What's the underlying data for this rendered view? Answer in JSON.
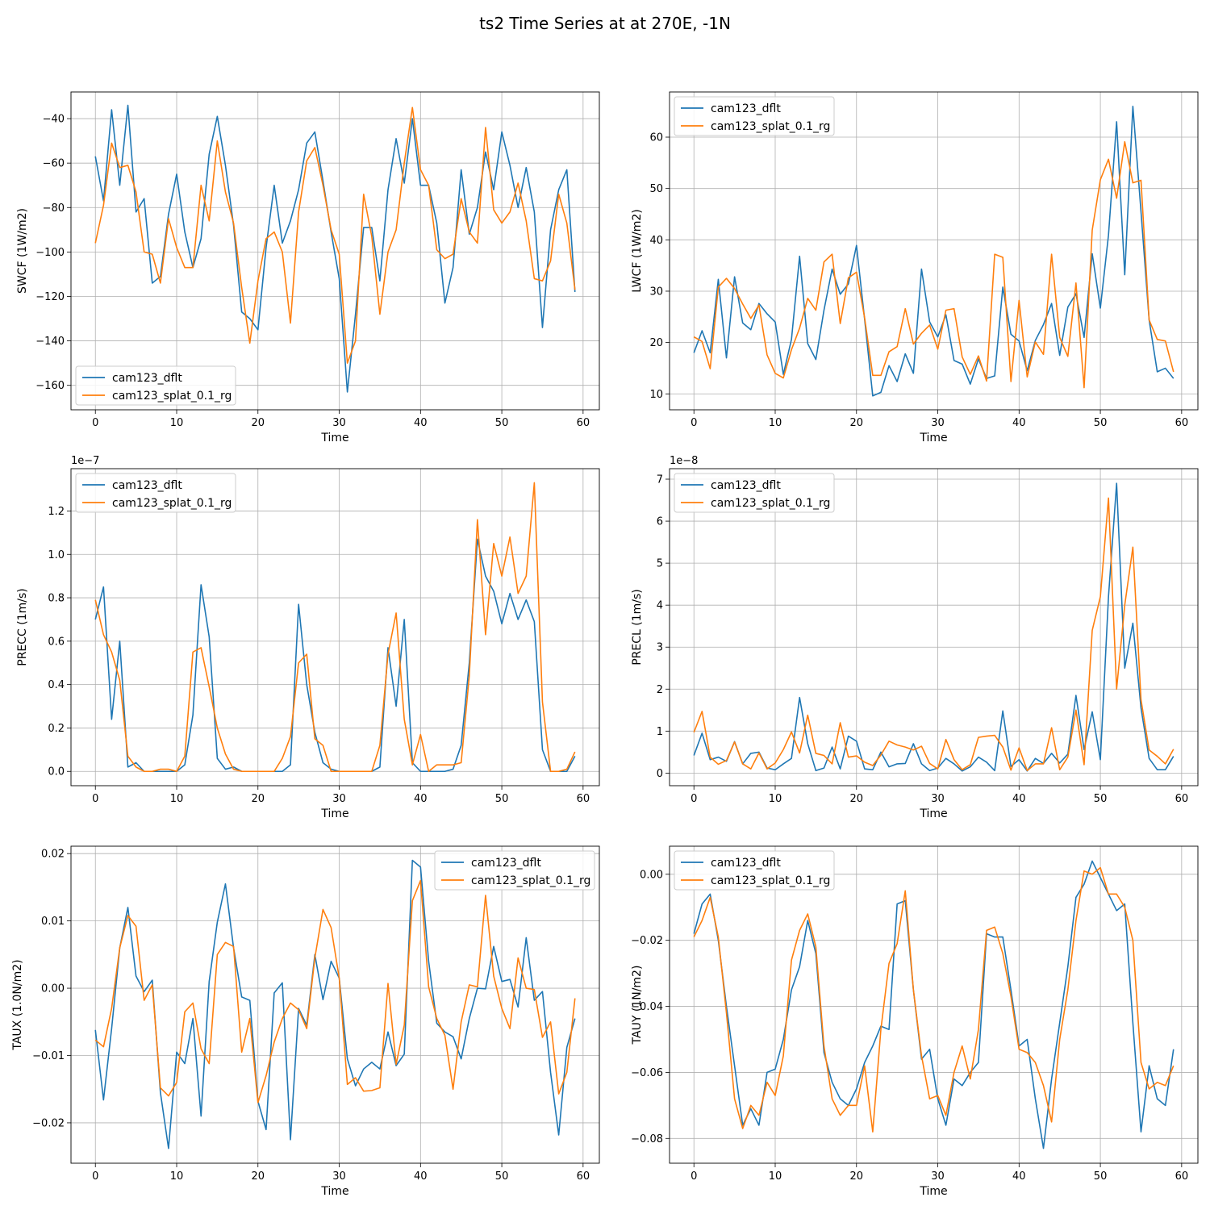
{
  "figure": {
    "title": "ts2 Time Series at at 270E, -1N"
  },
  "colors": {
    "series": [
      "#1f77b4",
      "#ff7f0e"
    ],
    "grid": "#b0b0b0",
    "frame": "#000000"
  },
  "chart_data": [
    {
      "type": "line",
      "xlabel": "Time",
      "ylabel": "SWCF (1W/m2)",
      "xlim": [
        -3,
        62
      ],
      "ylim": [
        -171,
        -28
      ],
      "xticks": [
        0,
        10,
        20,
        30,
        40,
        50,
        60
      ],
      "yticks": [
        -160,
        -140,
        -120,
        -100,
        -80,
        -60,
        -40
      ],
      "ytick_labels": [
        "−160",
        "−140",
        "−120",
        "−100",
        "−80",
        "−60",
        "−40"
      ],
      "grid": true,
      "offset_text": "",
      "legend": "lower-left",
      "series": [
        {
          "name": "cam123_dflt",
          "values": [
            -57,
            -77,
            -36,
            -70,
            -34,
            -82,
            -76,
            -114,
            -111,
            -83,
            -65,
            -91,
            -107,
            -94,
            -56,
            -39,
            -61,
            -88,
            -127,
            -130,
            -135,
            -98,
            -70,
            -96,
            -86,
            -72,
            -51,
            -46,
            -68,
            -91,
            -112,
            -163,
            -128,
            -89,
            -89,
            -113,
            -72,
            -49,
            -69,
            -40,
            -70,
            -70,
            -87,
            -123,
            -107,
            -63,
            -92,
            -80,
            -55,
            -72,
            -46,
            -61,
            -80,
            -62,
            -82,
            -134,
            -90,
            -72,
            -63,
            -118
          ]
        },
        {
          "name": "cam123_splat_0.1_rg",
          "values": [
            -96,
            -79,
            -51,
            -62,
            -61,
            -73,
            -100,
            -101,
            -114,
            -85,
            -98,
            -107,
            -107,
            -70,
            -86,
            -50,
            -73,
            -87,
            -116,
            -141,
            -113,
            -94,
            -91,
            -100,
            -132,
            -82,
            -59,
            -53,
            -70,
            -90,
            -101,
            -150,
            -140,
            -74,
            -93,
            -128,
            -100,
            -90,
            -60,
            -35,
            -63,
            -70,
            -99,
            -103,
            -101,
            -76,
            -91,
            -96,
            -44,
            -81,
            -87,
            -82,
            -69,
            -86,
            -112,
            -113,
            -104,
            -74,
            -87,
            -117
          ]
        }
      ]
    },
    {
      "type": "line",
      "xlabel": "Time",
      "ylabel": "LWCF (1W/m2)",
      "xlim": [
        -3,
        62
      ],
      "ylim": [
        6.9,
        68.8
      ],
      "xticks": [
        0,
        10,
        20,
        30,
        40,
        50,
        60
      ],
      "yticks": [
        10,
        20,
        30,
        40,
        50,
        60
      ],
      "ytick_labels": [
        "10",
        "20",
        "30",
        "40",
        "50",
        "60"
      ],
      "grid": true,
      "offset_text": "",
      "legend": "upper-left",
      "series": [
        {
          "name": "cam123_dflt",
          "values": [
            18,
            22.3,
            18,
            32.3,
            17,
            32.8,
            23.8,
            22.5,
            27.6,
            25.6,
            24,
            13.8,
            20.6,
            36.8,
            19.8,
            16.7,
            26.3,
            34.3,
            29.4,
            31.4,
            38.9,
            24.5,
            9.6,
            10.3,
            15.5,
            12.4,
            17.8,
            14,
            34.3,
            24,
            21.1,
            25.4,
            16.5,
            15.8,
            11.9,
            16.8,
            13,
            13.5,
            30.8,
            21.6,
            20.3,
            14.5,
            20.4,
            23.5,
            27.6,
            17.5,
            26.9,
            29.5,
            21,
            37.3,
            26.7,
            40.9,
            63,
            33.2,
            66,
            45.5,
            24.4,
            14.3,
            15,
            13
          ]
        },
        {
          "name": "cam123_splat_0.1_rg",
          "values": [
            21.1,
            20.2,
            14.9,
            30.8,
            32.5,
            30.5,
            27.5,
            24.7,
            27.3,
            17.6,
            14,
            13.1,
            18.6,
            22.8,
            28.6,
            26.3,
            35.7,
            37.2,
            23.7,
            32.6,
            33.7,
            24.8,
            13.6,
            13.6,
            18.2,
            19.2,
            26.6,
            19.7,
            21.8,
            23.4,
            18.7,
            26.3,
            26.6,
            17.2,
            13.8,
            17.4,
            12.5,
            37.2,
            36.6,
            12.4,
            28.2,
            13.3,
            20.1,
            17.7,
            37.2,
            21,
            17.3,
            31.6,
            11.2,
            41.9,
            51.7,
            55.7,
            48.1,
            59.1,
            51.1,
            51.6,
            24.4,
            20.6,
            20.3,
            14.3
          ]
        }
      ]
    },
    {
      "type": "line",
      "xlabel": "Time",
      "ylabel": "PRECC (1m/s)",
      "xlim": [
        -3,
        62
      ],
      "ylim": [
        -0.066,
        1.395
      ],
      "xticks": [
        0,
        10,
        20,
        30,
        40,
        50,
        60
      ],
      "yticks": [
        0.0,
        0.2,
        0.4,
        0.6,
        0.8,
        1.0,
        1.2
      ],
      "ytick_labels": [
        "0.0",
        "0.2",
        "0.4",
        "0.6",
        "0.8",
        "1.0",
        "1.2"
      ],
      "grid": true,
      "offset_text": "1e−7",
      "legend": "upper-left",
      "series": [
        {
          "name": "cam123_dflt",
          "values": [
            0.7,
            0.85,
            0.24,
            0.6,
            0.02,
            0.04,
            0.0,
            0.0,
            0.0,
            0.0,
            0.0,
            0.03,
            0.26,
            0.86,
            0.62,
            0.06,
            0.01,
            0.02,
            0.0,
            0.0,
            0.0,
            0.0,
            0.0,
            0.0,
            0.03,
            0.77,
            0.4,
            0.18,
            0.04,
            0.01,
            0.0,
            0.0,
            0.0,
            0.0,
            0.0,
            0.02,
            0.57,
            0.3,
            0.7,
            0.04,
            0.0,
            0.0,
            0.0,
            0.0,
            0.01,
            0.12,
            0.5,
            1.07,
            0.9,
            0.83,
            0.68,
            0.82,
            0.7,
            0.79,
            0.69,
            0.1,
            0.0,
            0.0,
            0.0,
            0.07
          ]
        },
        {
          "name": "cam123_splat_0.1_rg",
          "values": [
            0.79,
            0.63,
            0.55,
            0.42,
            0.07,
            0.02,
            0.0,
            0.0,
            0.01,
            0.01,
            0.0,
            0.07,
            0.55,
            0.57,
            0.39,
            0.2,
            0.08,
            0.01,
            0.0,
            0.0,
            0.0,
            0.0,
            0.0,
            0.06,
            0.16,
            0.5,
            0.54,
            0.15,
            0.12,
            0.0,
            0.0,
            0.0,
            0.0,
            0.0,
            0.0,
            0.12,
            0.54,
            0.73,
            0.24,
            0.03,
            0.17,
            0.0,
            0.03,
            0.03,
            0.03,
            0.04,
            0.44,
            1.16,
            0.63,
            1.05,
            0.9,
            1.08,
            0.82,
            0.9,
            1.33,
            0.32,
            0.0,
            0.0,
            0.01,
            0.09
          ]
        }
      ]
    },
    {
      "type": "line",
      "xlabel": "Time",
      "ylabel": "PRECL (1m/s)",
      "xlim": [
        -3,
        62
      ],
      "ylim": [
        -0.3,
        7.25
      ],
      "xticks": [
        0,
        10,
        20,
        30,
        40,
        50,
        60
      ],
      "yticks": [
        0,
        1,
        2,
        3,
        4,
        5,
        6,
        7
      ],
      "ytick_labels": [
        "0",
        "1",
        "2",
        "3",
        "4",
        "5",
        "6",
        "7"
      ],
      "grid": true,
      "offset_text": "1e−8",
      "legend": "upper-left",
      "series": [
        {
          "name": "cam123_dflt",
          "values": [
            0.42,
            0.95,
            0.32,
            0.38,
            0.28,
            0.75,
            0.22,
            0.47,
            0.5,
            0.12,
            0.08,
            0.22,
            0.35,
            1.8,
            0.7,
            0.06,
            0.12,
            0.62,
            0.1,
            0.88,
            0.76,
            0.1,
            0.08,
            0.5,
            0.15,
            0.22,
            0.23,
            0.7,
            0.22,
            0.06,
            0.12,
            0.35,
            0.22,
            0.05,
            0.15,
            0.38,
            0.26,
            0.06,
            1.48,
            0.16,
            0.32,
            0.05,
            0.35,
            0.23,
            0.47,
            0.24,
            0.45,
            1.85,
            0.56,
            1.46,
            0.32,
            4.2,
            6.9,
            2.5,
            3.57,
            1.55,
            0.35,
            0.08,
            0.08,
            0.4
          ]
        },
        {
          "name": "cam123_splat_0.1_rg",
          "values": [
            0.97,
            1.47,
            0.38,
            0.21,
            0.3,
            0.74,
            0.22,
            0.1,
            0.48,
            0.1,
            0.24,
            0.56,
            0.98,
            0.48,
            1.38,
            0.47,
            0.42,
            0.22,
            1.2,
            0.38,
            0.41,
            0.26,
            0.18,
            0.43,
            0.76,
            0.67,
            0.62,
            0.55,
            0.64,
            0.23,
            0.1,
            0.8,
            0.32,
            0.08,
            0.2,
            0.85,
            0.88,
            0.9,
            0.62,
            0.07,
            0.6,
            0.06,
            0.22,
            0.22,
            1.08,
            0.08,
            0.38,
            1.5,
            0.2,
            3.4,
            4.2,
            6.55,
            2.0,
            4.0,
            5.38,
            1.75,
            0.55,
            0.4,
            0.22,
            0.57
          ]
        }
      ]
    },
    {
      "type": "line",
      "xlabel": "Time",
      "ylabel": "TAUX (1.0N/m2)",
      "xlim": [
        -3,
        62
      ],
      "ylim": [
        -0.026,
        0.0211
      ],
      "xticks": [
        0,
        10,
        20,
        30,
        40,
        50,
        60
      ],
      "yticks": [
        -0.02,
        -0.01,
        0.0,
        0.01,
        0.02
      ],
      "ytick_labels": [
        "−0.02",
        "−0.01",
        "0.00",
        "0.01",
        "0.02"
      ],
      "grid": true,
      "offset_text": "",
      "legend": "upper-right",
      "series": [
        {
          "name": "cam123_dflt",
          "values": [
            -0.0062,
            -0.0166,
            -0.006,
            0.006,
            0.012,
            0.0018,
            -0.0005,
            0.0012,
            -0.0155,
            -0.0238,
            -0.0095,
            -0.0112,
            -0.0045,
            -0.019,
            0.001,
            0.0098,
            0.0155,
            0.006,
            -0.0013,
            -0.0018,
            -0.0168,
            -0.021,
            -0.0007,
            0.0008,
            -0.0225,
            -0.003,
            -0.0055,
            0.005,
            -0.0017,
            0.004,
            0.0015,
            -0.0105,
            -0.0145,
            -0.012,
            -0.011,
            -0.012,
            -0.0065,
            -0.0115,
            -0.0098,
            0.019,
            0.018,
            0.004,
            -0.0052,
            -0.0065,
            -0.0072,
            -0.0105,
            -0.0045,
            0.0,
            -0.0001,
            0.0062,
            0.001,
            0.0013,
            -0.0028,
            0.0075,
            -0.0018,
            -0.0005,
            -0.0125,
            -0.0218,
            -0.0088,
            -0.0045
          ]
        },
        {
          "name": "cam123_splat_0.1_rg",
          "values": [
            -0.0077,
            -0.0087,
            -0.003,
            0.006,
            0.0108,
            0.0092,
            -0.0018,
            0.0005,
            -0.0148,
            -0.016,
            -0.014,
            -0.0035,
            -0.0022,
            -0.009,
            -0.0112,
            0.005,
            0.0068,
            0.0062,
            -0.0095,
            -0.0045,
            -0.017,
            -0.013,
            -0.008,
            -0.0045,
            -0.0022,
            -0.0032,
            -0.006,
            0.0045,
            0.0117,
            0.009,
            0.0015,
            -0.0143,
            -0.0133,
            -0.0153,
            -0.0152,
            -0.0148,
            0.0007,
            -0.0113,
            -0.0055,
            0.013,
            0.016,
            0.0002,
            -0.0045,
            -0.007,
            -0.015,
            -0.005,
            0.0005,
            0.0002,
            0.0138,
            0.0018,
            -0.003,
            -0.006,
            0.0045,
            0.0,
            -0.0002,
            -0.0073,
            -0.005,
            -0.0157,
            -0.0125,
            -0.0015
          ]
        }
      ]
    },
    {
      "type": "line",
      "xlabel": "Time",
      "ylabel": "TAUY (1N/m2)",
      "xlim": [
        -3,
        62
      ],
      "ylim": [
        -0.0875,
        0.0085
      ],
      "xticks": [
        0,
        10,
        20,
        30,
        40,
        50,
        60
      ],
      "yticks": [
        -0.08,
        -0.06,
        -0.04,
        -0.02,
        0.0
      ],
      "ytick_labels": [
        "−0.08",
        "−0.06",
        "−0.04",
        "−0.02",
        "0.00"
      ],
      "grid": true,
      "offset_text": "",
      "legend": "upper-left",
      "series": [
        {
          "name": "cam123_dflt",
          "values": [
            -0.018,
            -0.009,
            -0.006,
            -0.02,
            -0.04,
            -0.058,
            -0.076,
            -0.071,
            -0.076,
            -0.06,
            -0.059,
            -0.05,
            -0.035,
            -0.028,
            -0.014,
            -0.024,
            -0.054,
            -0.063,
            -0.068,
            -0.07,
            -0.065,
            -0.057,
            -0.052,
            -0.046,
            -0.047,
            -0.009,
            -0.008,
            -0.035,
            -0.056,
            -0.053,
            -0.068,
            -0.076,
            -0.062,
            -0.064,
            -0.06,
            -0.057,
            -0.018,
            -0.019,
            -0.019,
            -0.035,
            -0.052,
            -0.05,
            -0.068,
            -0.083,
            -0.062,
            -0.045,
            -0.028,
            -0.007,
            -0.003,
            0.004,
            -0.001,
            -0.006,
            -0.011,
            -0.009,
            -0.045,
            -0.078,
            -0.058,
            -0.068,
            -0.07,
            -0.053
          ]
        },
        {
          "name": "cam123_splat_0.1_rg",
          "values": [
            -0.019,
            -0.014,
            -0.007,
            -0.019,
            -0.042,
            -0.068,
            -0.077,
            -0.07,
            -0.073,
            -0.063,
            -0.067,
            -0.055,
            -0.026,
            -0.017,
            -0.012,
            -0.022,
            -0.052,
            -0.068,
            -0.073,
            -0.07,
            -0.07,
            -0.058,
            -0.078,
            -0.047,
            -0.027,
            -0.021,
            -0.005,
            -0.035,
            -0.055,
            -0.068,
            -0.067,
            -0.073,
            -0.06,
            -0.052,
            -0.062,
            -0.047,
            -0.017,
            -0.016,
            -0.024,
            -0.037,
            -0.053,
            -0.054,
            -0.057,
            -0.064,
            -0.075,
            -0.05,
            -0.035,
            -0.014,
            0.001,
            0.0,
            0.002,
            -0.006,
            -0.006,
            -0.01,
            -0.02,
            -0.057,
            -0.065,
            -0.063,
            -0.064,
            -0.058
          ]
        }
      ]
    }
  ]
}
